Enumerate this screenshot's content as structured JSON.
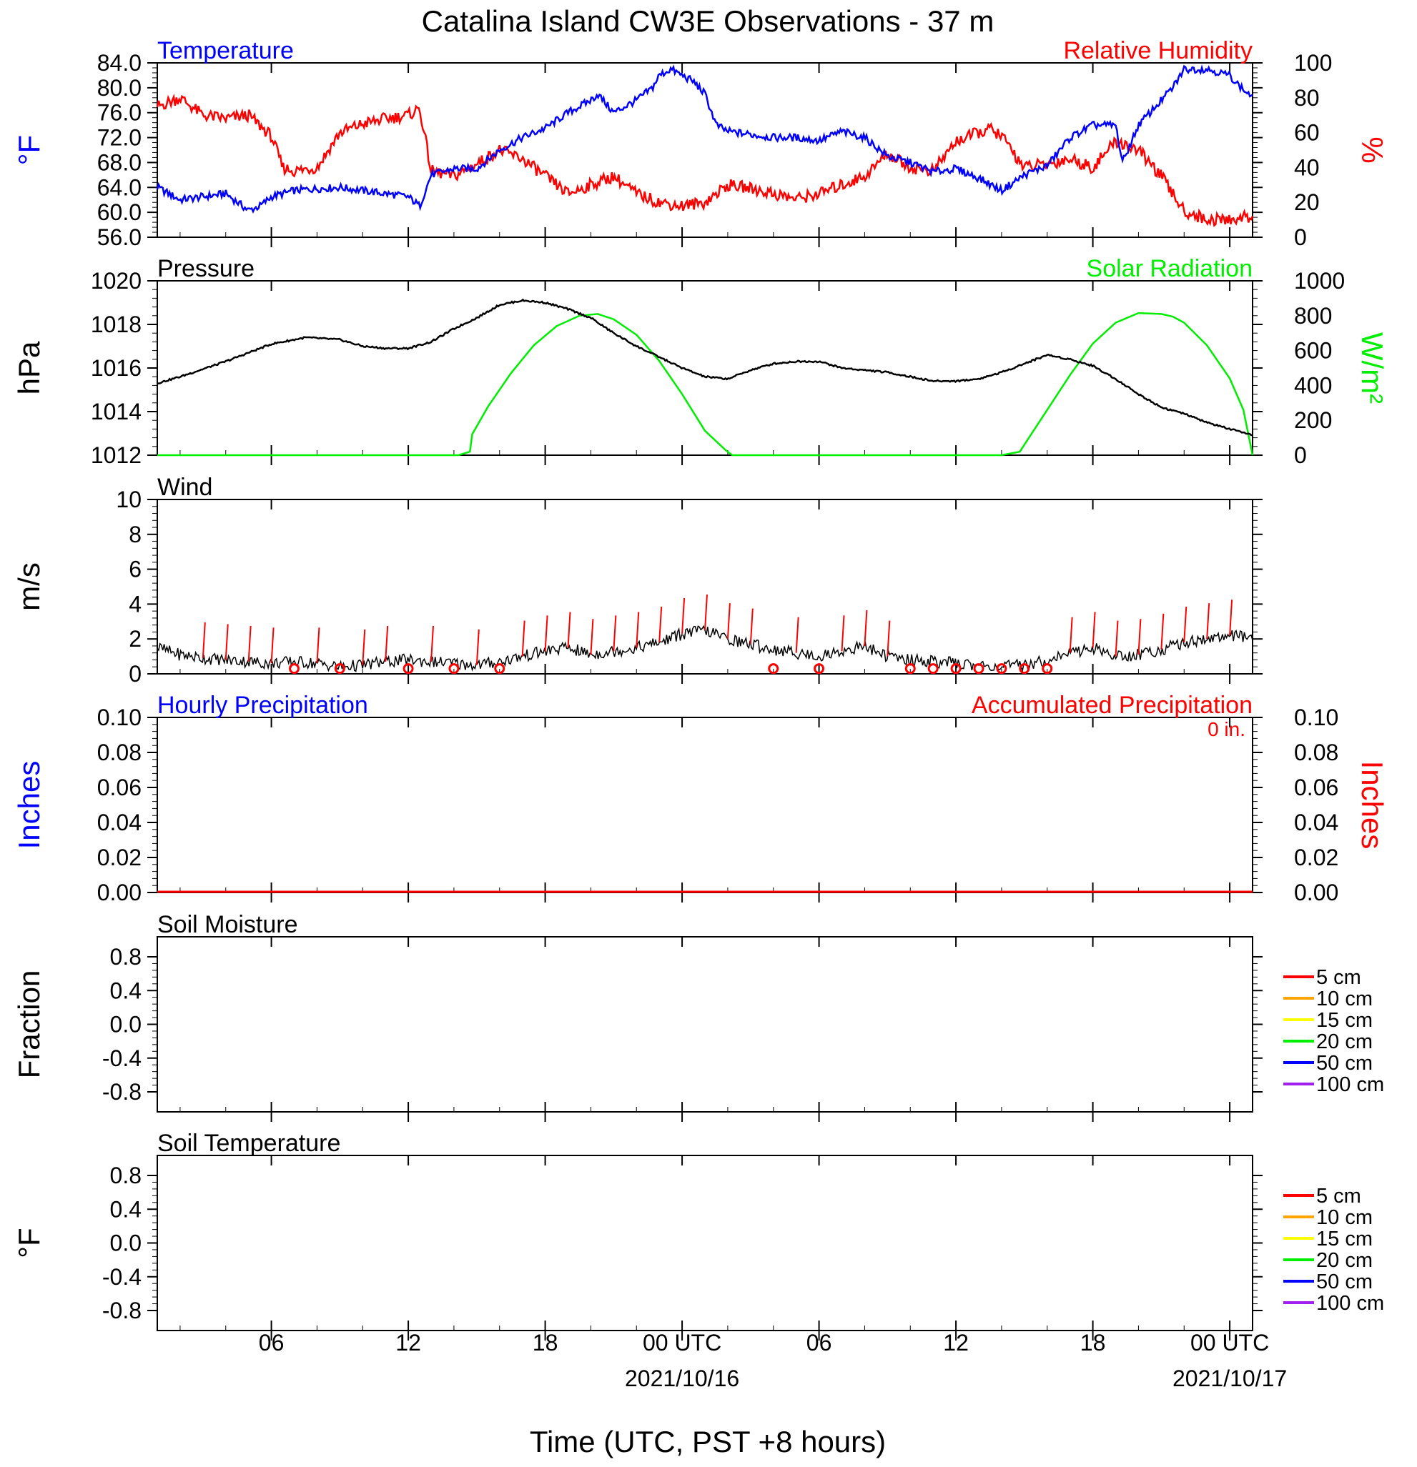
{
  "figure": {
    "title": "Catalina Island CW3E Observations - 37 m",
    "xlabel": "Time (UTC, PST +8 hours)",
    "x_ticks": [
      {
        "h": 6,
        "label": "06",
        "date": ""
      },
      {
        "h": 12,
        "label": "12",
        "date": ""
      },
      {
        "h": 18,
        "label": "18",
        "date": ""
      },
      {
        "h": 24,
        "label": "00 UTC",
        "date": "2021/10/16"
      },
      {
        "h": 30,
        "label": "06",
        "date": ""
      },
      {
        "h": 36,
        "label": "12",
        "date": ""
      },
      {
        "h": 42,
        "label": "18",
        "date": ""
      },
      {
        "h": 48,
        "label": "00 UTC",
        "date": "2021/10/17"
      }
    ],
    "x_range_hours": [
      1,
      49
    ]
  },
  "colors": {
    "temperature": "#0000ff",
    "humidity": "#ff0000",
    "pressure": "#000000",
    "solar": "#00ee00",
    "wind": "#000000",
    "wind_barb": "#ff0000",
    "precip_hourly": "#0000ff",
    "precip_accum": "#ff0000",
    "depth_5": "#ff0000",
    "depth_10": "#ffa500",
    "depth_15": "#ffff00",
    "depth_20": "#00ee00",
    "depth_50": "#0000ff",
    "depth_100": "#a020f0"
  },
  "panels": {
    "temp_rh": {
      "left_title": "Temperature",
      "right_title": "Relative Humidity",
      "left_unit": "°F",
      "right_unit": "%",
      "left_ticks": [
        "84.0",
        "80.0",
        "76.0",
        "72.0",
        "68.0",
        "64.0",
        "60.0",
        "56.0"
      ],
      "right_ticks": [
        "100",
        "80",
        "60",
        "40",
        "20",
        "0"
      ]
    },
    "pressure": {
      "left_title": "Pressure",
      "right_title": "Solar Radiation",
      "left_unit": "hPa",
      "right_unit": "W/m²",
      "left_ticks": [
        "1020",
        "1018",
        "1016",
        "1014",
        "1012"
      ],
      "right_ticks": [
        "1000",
        "800",
        "600",
        "400",
        "200",
        "0"
      ]
    },
    "wind": {
      "left_title": "Wind",
      "left_unit": "m/s",
      "left_ticks": [
        "10",
        "8",
        "6",
        "4",
        "2",
        "0"
      ]
    },
    "precip": {
      "left_title": "Hourly Precipitation",
      "right_title": "Accumulated Precipitation",
      "total_label": "0 in.",
      "left_unit": "Inches",
      "right_unit": "Inches",
      "left_ticks": [
        "0.10",
        "0.08",
        "0.06",
        "0.04",
        "0.02",
        "0.00"
      ],
      "right_ticks": [
        "0.10",
        "0.08",
        "0.06",
        "0.04",
        "0.02",
        "0.00"
      ]
    },
    "soil_moisture": {
      "left_title": "Soil Moisture",
      "left_unit": "Fraction",
      "left_ticks": [
        "0.8",
        "0.4",
        "0.0",
        "-0.4",
        "-0.8"
      ],
      "legend": [
        "5 cm",
        "10 cm",
        "15 cm",
        "20 cm",
        "50 cm",
        "100 cm"
      ]
    },
    "soil_temp": {
      "left_title": "Soil Temperature",
      "left_unit": "°F",
      "left_ticks": [
        "0.8",
        "0.4",
        "0.0",
        "-0.4",
        "-0.8"
      ],
      "legend": [
        "5 cm",
        "10 cm",
        "15 cm",
        "20 cm",
        "50 cm",
        "100 cm"
      ]
    }
  },
  "chart_data": [
    {
      "type": "line",
      "title": "Temperature",
      "ylabel": "°F",
      "ylim": [
        56,
        84
      ],
      "x_unit": "hours since 2021/10/15 00 UTC",
      "series": [
        {
          "name": "Temperature",
          "x": [
            1,
            2,
            3,
            4,
            5,
            5.5,
            6,
            7,
            8,
            9,
            10,
            11,
            12,
            12.5,
            13,
            14,
            15,
            16,
            17,
            18,
            19,
            20,
            20.3,
            21,
            22,
            22.7,
            23,
            23.5,
            24,
            24.5,
            25,
            25.5,
            26,
            27,
            28,
            29,
            30,
            31,
            32,
            33,
            34,
            35,
            36,
            37,
            38,
            39,
            40,
            41,
            41.5,
            42,
            43,
            43.3,
            44,
            45,
            45.5,
            46,
            47,
            48,
            48.5,
            49
          ],
          "values": [
            64,
            62,
            62.5,
            63,
            60.3,
            61,
            62.5,
            63.5,
            63.8,
            64,
            63.5,
            63,
            62.5,
            61,
            66,
            67,
            67,
            70,
            72,
            73.5,
            76,
            78,
            79,
            76,
            78,
            80,
            82,
            83,
            82,
            81,
            79,
            74,
            73,
            72.5,
            72,
            72,
            71.5,
            73,
            72,
            69,
            68,
            66.5,
            67,
            65.5,
            63.5,
            66,
            67.5,
            72,
            73,
            74,
            74,
            68,
            74,
            78,
            80,
            83,
            83,
            82,
            80,
            78.5
          ]
        }
      ]
    },
    {
      "type": "line",
      "title": "Relative Humidity",
      "ylabel": "%",
      "ylim": [
        0,
        100
      ],
      "x_unit": "hours since 2021/10/15 00 UTC",
      "series": [
        {
          "name": "Relative Humidity",
          "x": [
            1,
            2,
            3,
            4,
            5,
            6,
            6.5,
            7,
            8,
            9,
            10,
            11,
            12,
            12.5,
            13,
            14,
            15,
            16,
            17,
            18,
            19,
            20,
            21,
            22,
            23,
            24,
            25,
            26,
            27,
            28,
            29,
            30,
            31,
            32,
            33,
            34,
            35,
            36,
            37,
            37.5,
            38,
            39,
            40,
            41,
            42,
            43,
            44,
            45,
            46,
            47,
            48,
            49
          ],
          "values": [
            75,
            80,
            70,
            68,
            70,
            58,
            40,
            38,
            40,
            60,
            65,
            68,
            70,
            74,
            38,
            35,
            42,
            50,
            45,
            35,
            25,
            30,
            35,
            25,
            20,
            18,
            20,
            30,
            28,
            25,
            22,
            25,
            30,
            35,
            48,
            40,
            38,
            55,
            60,
            62,
            58,
            40,
            42,
            45,
            40,
            55,
            50,
            35,
            15,
            10,
            10,
            12
          ]
        }
      ]
    },
    {
      "type": "line",
      "title": "Pressure",
      "ylabel": "hPa",
      "ylim": [
        1012,
        1020
      ],
      "x_unit": "hours since 2021/10/15 00 UTC",
      "series": [
        {
          "name": "Pressure",
          "x": [
            1,
            2,
            4,
            6,
            7.5,
            9,
            10,
            11,
            12,
            13,
            14,
            15,
            16,
            17,
            18,
            19,
            20,
            21,
            22,
            23,
            24,
            25,
            26,
            27,
            28,
            29,
            30,
            31,
            32,
            33,
            34,
            35,
            36,
            37,
            38,
            39,
            40,
            41,
            42,
            43,
            44,
            45,
            46,
            47,
            48,
            49
          ],
          "values": [
            1015.3,
            1015.6,
            1016.3,
            1017.1,
            1017.4,
            1017.3,
            1017.0,
            1016.9,
            1016.9,
            1017.2,
            1017.8,
            1018.3,
            1018.9,
            1019.1,
            1019.0,
            1018.7,
            1018.3,
            1017.6,
            1017.0,
            1016.5,
            1016.0,
            1015.6,
            1015.5,
            1015.9,
            1016.2,
            1016.3,
            1016.3,
            1016.0,
            1015.9,
            1015.8,
            1015.6,
            1015.4,
            1015.4,
            1015.5,
            1015.8,
            1016.2,
            1016.6,
            1016.4,
            1016.1,
            1015.5,
            1014.8,
            1014.2,
            1013.9,
            1013.5,
            1013.2,
            1012.9
          ]
        }
      ]
    },
    {
      "type": "line",
      "title": "Solar Radiation",
      "ylabel": "W/m²",
      "ylim": [
        0,
        1000
      ],
      "x_unit": "hours since 2021/10/15 00 UTC",
      "series": [
        {
          "name": "Solar Radiation",
          "x": [
            1,
            14.2,
            14.7,
            14.8,
            15.5,
            16.5,
            17.5,
            18.5,
            19.5,
            20.3,
            21,
            22,
            23,
            24,
            25,
            25.9,
            26.2,
            27,
            38,
            38.8,
            39.3,
            40,
            41,
            42,
            43,
            44,
            45,
            45.5,
            46,
            47,
            48,
            48.6,
            49
          ],
          "values": [
            0,
            0,
            20,
            120,
            280,
            470,
            630,
            740,
            800,
            810,
            780,
            690,
            540,
            350,
            140,
            30,
            0,
            0,
            0,
            20,
            120,
            260,
            460,
            640,
            760,
            815,
            810,
            795,
            760,
            630,
            440,
            260,
            0
          ]
        }
      ]
    },
    {
      "type": "line",
      "title": "Wind",
      "ylabel": "m/s",
      "ylim": [
        0,
        10
      ],
      "x_unit": "hours since 2021/10/15 00 UTC",
      "series": [
        {
          "name": "Wind",
          "x": [
            1,
            2,
            3,
            4,
            5,
            6,
            7,
            8,
            9,
            10,
            11,
            12,
            13,
            14,
            15,
            16,
            17,
            18,
            19,
            20,
            21,
            22,
            23,
            24,
            25,
            26,
            27,
            28,
            29,
            30,
            31,
            32,
            33,
            34,
            35,
            36,
            37,
            38,
            39,
            40,
            41,
            42,
            43,
            44,
            45,
            46,
            47,
            48,
            49
          ],
          "values": [
            1.5,
            1.1,
            0.9,
            0.8,
            0.7,
            0.6,
            0.7,
            0.6,
            0.4,
            0.5,
            0.7,
            0.8,
            0.7,
            0.6,
            0.5,
            0.7,
            1.0,
            1.3,
            1.5,
            1.1,
            1.3,
            1.5,
            1.8,
            2.3,
            2.5,
            2.0,
            1.7,
            1.4,
            1.2,
            1.0,
            1.3,
            1.6,
            1.0,
            0.8,
            0.7,
            0.6,
            0.5,
            0.4,
            0.5,
            0.8,
            1.2,
            1.5,
            1.0,
            1.1,
            1.4,
            1.8,
            2.0,
            2.2,
            2.0
          ]
        }
      ],
      "calm_markers_hours": [
        7,
        9,
        12,
        14,
        16,
        28,
        30,
        34,
        35,
        36,
        37,
        38,
        39,
        40
      ]
    },
    {
      "type": "line",
      "title": "Hourly Precipitation",
      "ylabel": "Inches",
      "ylim": [
        0,
        0.1
      ],
      "series": [
        {
          "name": "Hourly Precipitation",
          "x": [
            1,
            49
          ],
          "values": [
            0,
            0
          ]
        },
        {
          "name": "Accumulated Precipitation",
          "x": [
            1,
            49
          ],
          "values": [
            0,
            0
          ]
        }
      ]
    },
    {
      "type": "line",
      "title": "Soil Moisture",
      "ylabel": "Fraction",
      "ylim": [
        -1,
        1
      ],
      "series": []
    },
    {
      "type": "line",
      "title": "Soil Temperature",
      "ylabel": "°F",
      "ylim": [
        -1,
        1
      ],
      "series": []
    }
  ]
}
